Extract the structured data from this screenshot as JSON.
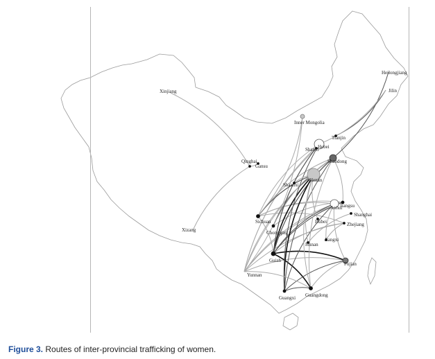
{
  "caption": {
    "label": "Figure 3.",
    "text": " Routes of inter-provincial trafficking of women."
  },
  "colors": {
    "caption_label": "#1f4e9a",
    "map_outline": "#9a9a9a",
    "edge_dark": "#111111",
    "edge_mid": "#555555",
    "edge_light": "#aaaaaa"
  },
  "nodes": [
    {
      "id": "xinjiang",
      "name": "Xinjiang"
    },
    {
      "id": "xizang",
      "name": "Xizang"
    },
    {
      "id": "qinghai",
      "name": "Qinghai"
    },
    {
      "id": "gansu",
      "name": "Gansu"
    },
    {
      "id": "inner_mongolia",
      "name": "Inner Mongolia"
    },
    {
      "id": "heilongjiang",
      "name": "Heilongjiang"
    },
    {
      "id": "jilin",
      "name": "Jilin"
    },
    {
      "id": "tianjin",
      "name": "Tianjin"
    },
    {
      "id": "hebei",
      "name": "Hebei"
    },
    {
      "id": "shanxi",
      "name": "Shanxi"
    },
    {
      "id": "shandong",
      "name": "Shandong"
    },
    {
      "id": "shaanxi",
      "name": "Shaanxi"
    },
    {
      "id": "henan",
      "name": "Henan"
    },
    {
      "id": "jiangsu",
      "name": "Jiangsu"
    },
    {
      "id": "anhui",
      "name": "Anhui"
    },
    {
      "id": "shanghai",
      "name": "Shanghai"
    },
    {
      "id": "zhejiang",
      "name": "Zhejiang"
    },
    {
      "id": "sichuan",
      "name": "Sichuan"
    },
    {
      "id": "chongqing",
      "name": "Chongqing"
    },
    {
      "id": "hubei",
      "name": "Hubei"
    },
    {
      "id": "hunan",
      "name": "Hunan"
    },
    {
      "id": "jiangxi",
      "name": "Jiangxi"
    },
    {
      "id": "guizhou",
      "name": "Guizh"
    },
    {
      "id": "fujian",
      "name": "Fujian"
    },
    {
      "id": "yunnan",
      "name": "Yunnan"
    },
    {
      "id": "guangxi",
      "name": "Guangxi"
    },
    {
      "id": "guangdong",
      "name": "Guangdong"
    }
  ]
}
